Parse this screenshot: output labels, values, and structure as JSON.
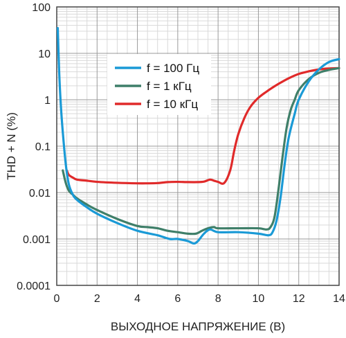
{
  "chart_data": {
    "type": "line",
    "title": "",
    "xlabel": "ВЫХОДНОЕ НАПРЯЖЕНИЕ (В)",
    "ylabel": "THD + N (%)",
    "xlim": [
      0,
      14
    ],
    "ylim": [
      0.0001,
      100
    ],
    "y_scale": "log",
    "grid": true,
    "legend_position": "top-center",
    "x_ticks": [
      0,
      2,
      4,
      6,
      8,
      10,
      12,
      14
    ],
    "x_tick_labels": [
      "0",
      "2",
      "4",
      "6",
      "8",
      "10",
      "12",
      "14"
    ],
    "y_ticks": [
      0.0001,
      0.001,
      0.01,
      0.1,
      1,
      10,
      100
    ],
    "y_tick_labels": [
      "0.0001",
      "0.001",
      "0.01",
      "0.1",
      "1",
      "10",
      "100"
    ],
    "series": [
      {
        "name": "f = 100 Гц",
        "color": "#1a9ad6",
        "x": [
          0.05,
          0.12,
          0.2,
          0.3,
          0.45,
          0.6,
          0.8,
          1.0,
          1.5,
          2.0,
          3.0,
          4.0,
          5.0,
          5.6,
          6.0,
          6.5,
          6.8,
          7.0,
          7.3,
          7.6,
          8.0,
          9.0,
          10.0,
          10.5,
          10.7,
          10.9,
          11.1,
          11.3,
          11.5,
          11.8,
          12.0,
          12.5,
          13.0,
          13.5,
          14.0
        ],
        "y": [
          35,
          4,
          0.8,
          0.2,
          0.04,
          0.015,
          0.009,
          0.007,
          0.0048,
          0.0035,
          0.0022,
          0.0015,
          0.0012,
          0.001,
          0.001,
          0.0009,
          0.0008,
          0.0009,
          0.0013,
          0.0016,
          0.0014,
          0.0014,
          0.0013,
          0.0012,
          0.0014,
          0.0025,
          0.008,
          0.04,
          0.15,
          0.5,
          1.0,
          2.5,
          4.5,
          6.5,
          7.5
        ]
      },
      {
        "name": "f = 1 кГц",
        "color": "#3f7f69",
        "x": [
          0.3,
          0.45,
          0.6,
          0.8,
          1.0,
          1.5,
          2.0,
          3.0,
          4.0,
          4.5,
          5.0,
          5.5,
          6.0,
          6.5,
          6.9,
          7.2,
          7.5,
          7.8,
          8.0,
          9.0,
          10.0,
          10.4,
          10.6,
          10.8,
          11.0,
          11.2,
          11.4,
          11.6,
          11.8,
          12.0,
          12.5,
          13.0,
          13.5,
          14.0
        ],
        "y": [
          0.03,
          0.016,
          0.011,
          0.009,
          0.0075,
          0.0055,
          0.0042,
          0.0027,
          0.0019,
          0.0018,
          0.0017,
          0.0015,
          0.0014,
          0.0013,
          0.0013,
          0.0015,
          0.0017,
          0.0018,
          0.0017,
          0.0017,
          0.0017,
          0.0016,
          0.0018,
          0.003,
          0.012,
          0.06,
          0.25,
          0.6,
          1.0,
          1.6,
          2.8,
          3.8,
          4.4,
          4.8
        ]
      },
      {
        "name": "f = 10 кГц",
        "color": "#e02a2a",
        "x": [
          0.5,
          0.6,
          0.8,
          1.0,
          1.5,
          2.0,
          3.0,
          4.0,
          4.5,
          5.0,
          5.5,
          6.0,
          6.5,
          7.0,
          7.3,
          7.6,
          7.8,
          8.0,
          8.3,
          8.6,
          8.8,
          9.0,
          9.3,
          9.6,
          10.0,
          10.5,
          11.0,
          11.5,
          12.0,
          12.5,
          13.0,
          13.5,
          14.0
        ],
        "y": [
          0.03,
          0.024,
          0.021,
          0.019,
          0.018,
          0.017,
          0.0162,
          0.0158,
          0.0158,
          0.016,
          0.0168,
          0.017,
          0.0168,
          0.0168,
          0.0172,
          0.019,
          0.018,
          0.017,
          0.016,
          0.03,
          0.08,
          0.18,
          0.4,
          0.7,
          1.1,
          1.6,
          2.2,
          2.9,
          3.6,
          4.1,
          4.5,
          4.7,
          4.8
        ]
      }
    ]
  }
}
